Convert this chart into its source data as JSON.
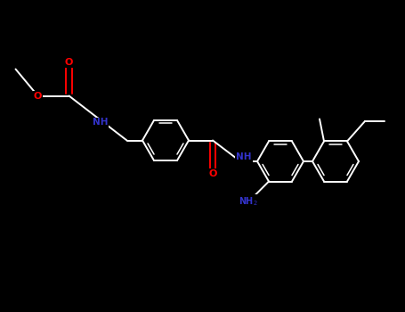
{
  "bg_color": "#000000",
  "bond_color": "#ffffff",
  "O_color": "#ff0000",
  "N_color": "#3333cc",
  "figsize": [
    4.55,
    3.5
  ],
  "dpi": 100,
  "xlim": [
    0,
    9.1
  ],
  "ylim": [
    0,
    7.0
  ]
}
